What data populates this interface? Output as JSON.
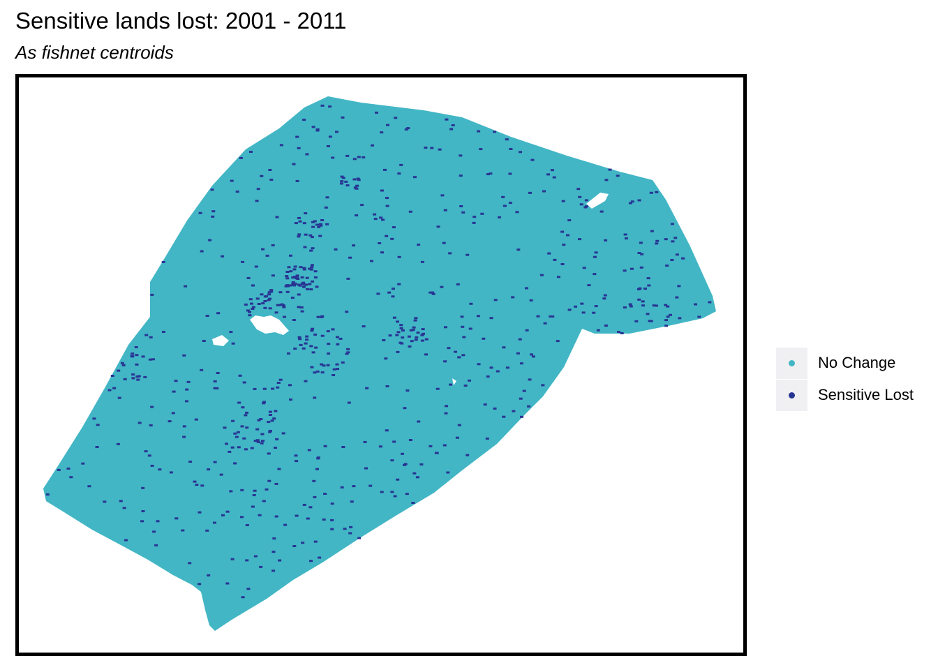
{
  "title": "Sensitive lands lost: 2001 - 2011",
  "subtitle": "As fishnet centroids",
  "legend": {
    "items": [
      {
        "label": "No Change",
        "color": "#42b6c5"
      },
      {
        "label": "Sensitive Lost",
        "color": "#283593"
      }
    ]
  },
  "map": {
    "frame_color": "#000000",
    "background": "#ffffff",
    "no_change_color": "#42b6c5",
    "sensitive_lost_color": "#283593"
  }
}
